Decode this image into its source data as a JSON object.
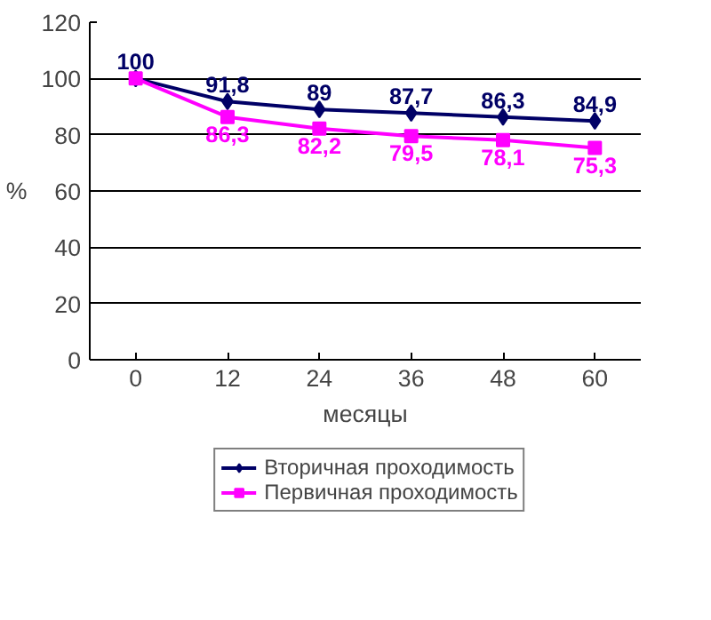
{
  "chart_data": {
    "type": "line",
    "categories": [
      "0",
      "12",
      "24",
      "36",
      "48",
      "60"
    ],
    "xlabel": "месяцы",
    "ylabel": "%",
    "ylim": [
      0,
      120
    ],
    "yticks": [
      0,
      20,
      40,
      60,
      80,
      100,
      120
    ],
    "grid": "y",
    "legend": "bottom",
    "series": [
      {
        "name": "Вторичная проходимость",
        "color": "#000066",
        "marker": "diamond",
        "values": [
          100,
          91.8,
          89,
          87.7,
          86.3,
          84.9
        ],
        "value_labels": [
          "100",
          "91,8",
          "89",
          "87,7",
          "86,3",
          "84,9"
        ]
      },
      {
        "name": "Первичная проходимость",
        "color": "#ff00ff",
        "marker": "square",
        "values": [
          100,
          86.3,
          82.2,
          79.5,
          78.1,
          75.3
        ],
        "value_labels": [
          null,
          "86,3",
          "82,2",
          "79,5",
          "78,1",
          "75,3"
        ]
      }
    ]
  }
}
